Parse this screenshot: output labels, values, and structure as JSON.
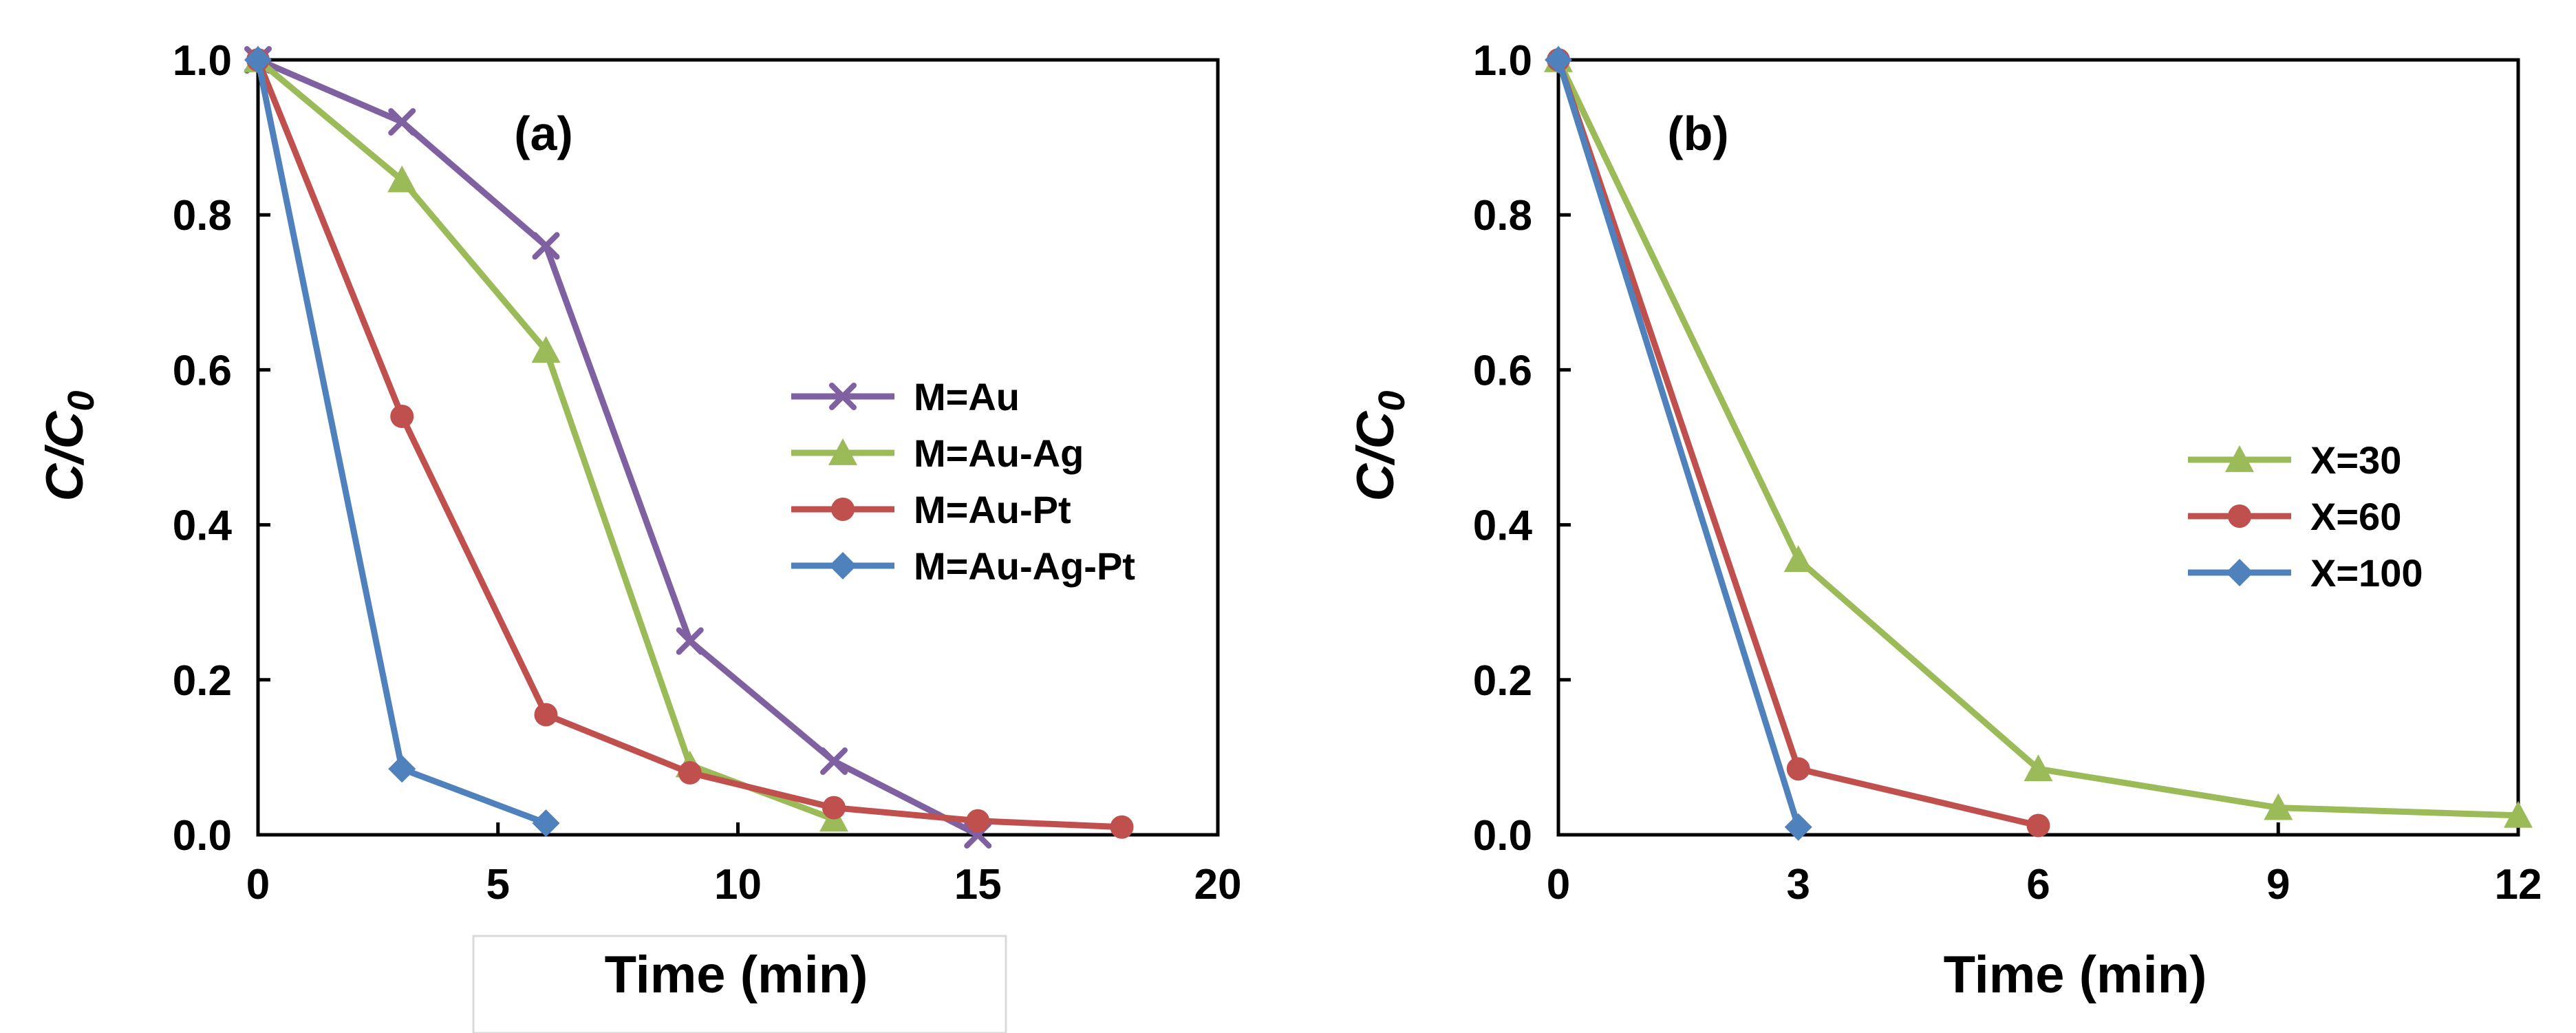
{
  "colors": {
    "purple": "#7F60A1",
    "green": "#9BBB59",
    "red": "#C0504D",
    "blue": "#4F81BD",
    "axis": "#000000"
  },
  "chart_data": [
    {
      "type": "line",
      "panel_label": "(a)",
      "xlabel": "Time (min)",
      "ylabel": "C/C",
      "ylabel_sub": "0",
      "xlim": [
        0,
        20
      ],
      "ylim": [
        0,
        1.0
      ],
      "xticks": [
        0,
        5,
        10,
        15,
        20
      ],
      "xtick_labels": [
        "0",
        "5",
        "10",
        "15",
        "20"
      ],
      "yticks": [
        0,
        0.2,
        0.4,
        0.6,
        0.8,
        1.0
      ],
      "ytick_labels": [
        "0.0",
        "0.2",
        "0.4",
        "0.6",
        "0.8",
        "1.0"
      ],
      "legend_position": "center-right",
      "series": [
        {
          "name": "M=Au",
          "marker": "x",
          "color": "#7F60A1",
          "x": [
            0,
            3,
            6,
            9,
            12,
            15
          ],
          "y": [
            1.0,
            0.92,
            0.76,
            0.25,
            0.095,
            0.0
          ]
        },
        {
          "name": "M=Au-Ag",
          "marker": "triangle",
          "color": "#9BBB59",
          "x": [
            0,
            3,
            6,
            9,
            12
          ],
          "y": [
            1.0,
            0.845,
            0.625,
            0.09,
            0.02
          ]
        },
        {
          "name": "M=Au-Pt",
          "marker": "circle",
          "color": "#C0504D",
          "x": [
            0,
            3,
            6,
            9,
            12,
            15,
            18
          ],
          "y": [
            1.0,
            0.54,
            0.155,
            0.08,
            0.035,
            0.018,
            0.01
          ]
        },
        {
          "name": "M=Au-Ag-Pt",
          "marker": "diamond",
          "color": "#4F81BD",
          "x": [
            0,
            3,
            6
          ],
          "y": [
            1.0,
            0.085,
            0.015
          ]
        }
      ]
    },
    {
      "type": "line",
      "panel_label": "(b)",
      "xlabel": "Time (min)",
      "ylabel": "C/C",
      "ylabel_sub": "0",
      "xlim": [
        0,
        12
      ],
      "ylim": [
        0,
        1.0
      ],
      "xticks": [
        0,
        3,
        6,
        9,
        12
      ],
      "xtick_labels": [
        "0",
        "3",
        "6",
        "9",
        "12"
      ],
      "yticks": [
        0,
        0.2,
        0.4,
        0.6,
        0.8,
        1.0
      ],
      "ytick_labels": [
        "0.0",
        "0.2",
        "0.4",
        "0.6",
        "0.8",
        "1.0"
      ],
      "legend_position": "center-right",
      "series": [
        {
          "name": "X=30",
          "marker": "triangle",
          "color": "#9BBB59",
          "x": [
            0,
            3,
            6,
            9,
            12
          ],
          "y": [
            1.0,
            0.355,
            0.085,
            0.035,
            0.025
          ]
        },
        {
          "name": "X=60",
          "marker": "circle",
          "color": "#C0504D",
          "x": [
            0,
            3,
            6
          ],
          "y": [
            1.0,
            0.085,
            0.012
          ]
        },
        {
          "name": "X=100",
          "marker": "diamond",
          "color": "#4F81BD",
          "x": [
            0,
            3
          ],
          "y": [
            1.0,
            0.01
          ]
        }
      ]
    }
  ]
}
